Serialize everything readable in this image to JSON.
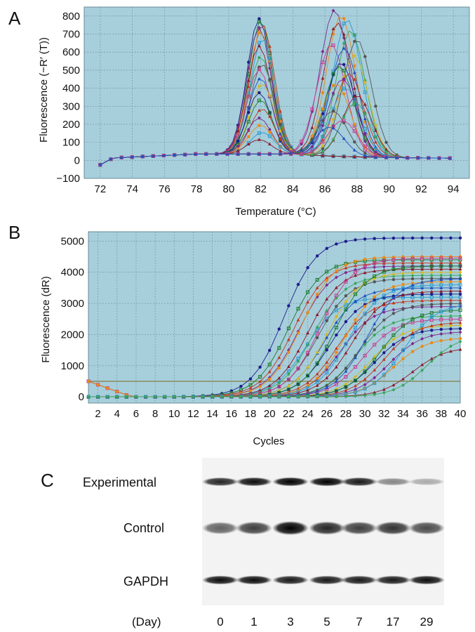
{
  "panel_labels": {
    "a": "A",
    "b": "B",
    "c": "C"
  },
  "colors": {
    "plot_bg": "#a7cedb",
    "grid": "#6f8f9a",
    "palette": [
      "#1c1c8c",
      "#1a7a2a",
      "#c0361f",
      "#7b2a8f",
      "#e88a1a",
      "#2a9ad0",
      "#8b1a2b",
      "#3aa55a",
      "#555555",
      "#c83a8f",
      "#1f4fbf",
      "#d4b81f"
    ]
  },
  "chart_data": [
    {
      "type": "line",
      "panel": "A",
      "xlabel": "Temperature (°C)",
      "ylabel": "Fluorescence (−R′ (T))",
      "xlim": [
        71,
        95
      ],
      "ylim": [
        -100,
        850
      ],
      "xticks": [
        72,
        74,
        76,
        78,
        80,
        82,
        84,
        86,
        88,
        90,
        92,
        94
      ],
      "yticks": [
        -100,
        0,
        100,
        200,
        300,
        400,
        500,
        600,
        700,
        800
      ],
      "grid": true,
      "description_peaks": {
        "group1_peak_temperature": 82,
        "group1_peak_heights": [
          750,
          740,
          720,
          700,
          680,
          640,
          600,
          540,
          500,
          470,
          420,
          390,
          340,
          300,
          250,
          200,
          160,
          120,
          80
        ],
        "group2_peak_temperatures": [
          86.6,
          87.0,
          87.4,
          86.8,
          87.6,
          88.0,
          86.4,
          87.2,
          87.8,
          87.0,
          86.9,
          87.5,
          87.1,
          86.7,
          87.3,
          88.0,
          87.9,
          86.5,
          87.1,
          86.3
        ],
        "group2_peak_heights": [
          810,
          780,
          760,
          740,
          700,
          650,
          620,
          600,
          560,
          520,
          500,
          460,
          430,
          400,
          380,
          340,
          300,
          250,
          200,
          160
        ]
      }
    },
    {
      "type": "line",
      "panel": "B",
      "xlabel": "Cycles",
      "ylabel": "Fluorescence (dR)",
      "xlim": [
        1,
        40
      ],
      "ylim": [
        -200,
        5300
      ],
      "xticks": [
        2,
        4,
        6,
        8,
        10,
        12,
        14,
        16,
        18,
        20,
        22,
        24,
        26,
        28,
        30,
        32,
        34,
        36,
        38,
        40
      ],
      "yticks": [
        0,
        1000,
        2000,
        3000,
        4000,
        5000
      ],
      "threshold": 500,
      "grid": true,
      "description_curves": {
        "midpoints": [
          21.5,
          22,
          22.5,
          23,
          23.3,
          23.8,
          24,
          24.5,
          25,
          25.3,
          25.7,
          26,
          26.3,
          26.8,
          27,
          27.4,
          27.8,
          28.2,
          28.6,
          29,
          29.4,
          29.8,
          30.2,
          30.6,
          31,
          31.5,
          32,
          32.5,
          33,
          34,
          35,
          36.5
        ],
        "plateaus": [
          5100,
          4400,
          4300,
          4200,
          4500,
          3200,
          4100,
          3900,
          3800,
          4450,
          3500,
          4000,
          3300,
          4200,
          3100,
          2900,
          3700,
          3600,
          3400,
          2600,
          3000,
          2500,
          3800,
          2300,
          2200,
          2800,
          2400,
          2100,
          1900,
          3000,
          1600,
          2000
        ]
      }
    }
  ],
  "blot": {
    "rows": [
      {
        "label": "Experimental",
        "intensities": [
          0.85,
          0.95,
          1.0,
          1.0,
          0.9,
          0.45,
          0.3
        ]
      },
      {
        "label": "Control",
        "intensities": [
          0.6,
          0.75,
          1.0,
          0.85,
          0.75,
          0.8,
          0.7
        ]
      },
      {
        "label": "GAPDH",
        "intensities": [
          0.95,
          0.95,
          0.9,
          0.9,
          0.9,
          0.9,
          0.95
        ]
      }
    ],
    "day_label": "(Day)",
    "days": [
      "0",
      "1",
      "3",
      "5",
      "7",
      "17",
      "29"
    ]
  }
}
